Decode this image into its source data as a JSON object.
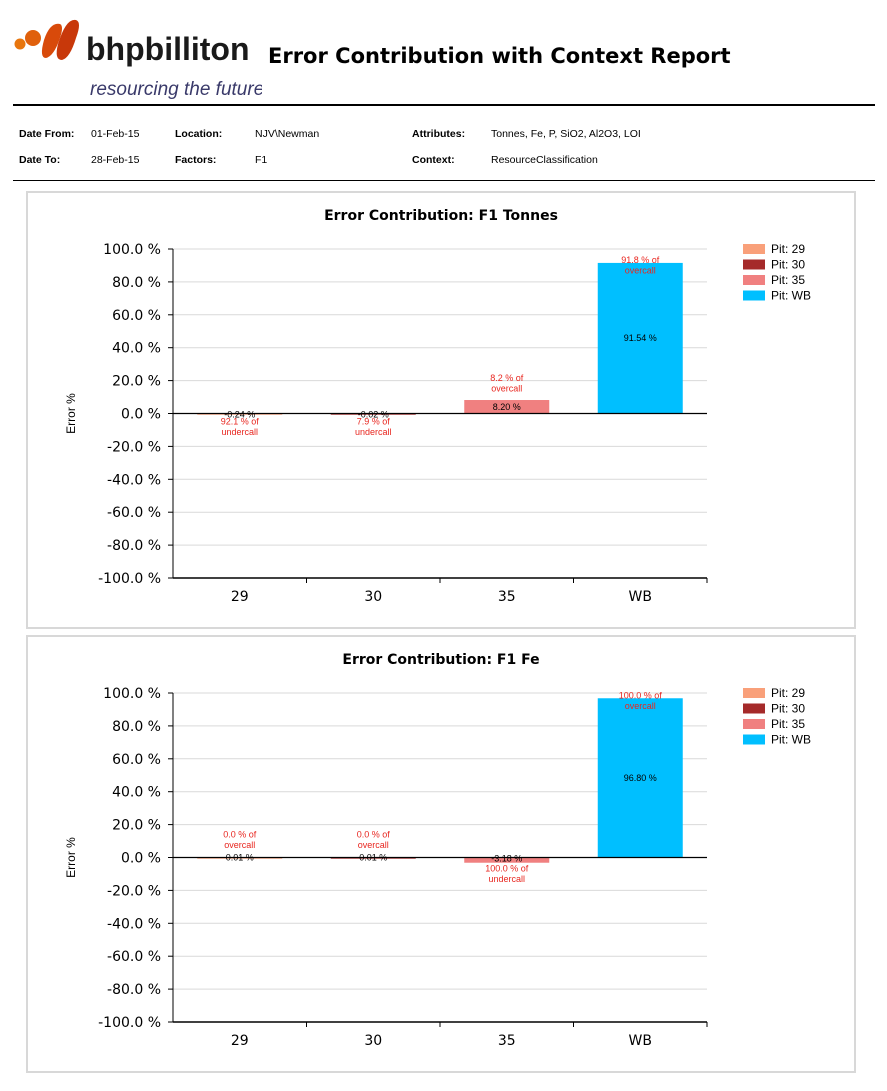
{
  "header": {
    "logo_name": "bhpbilliton",
    "logo_tagline": "resourcing the future",
    "report_title": "Error Contribution with Context Report"
  },
  "filters": {
    "date_from_label": "Date From:",
    "date_from": "01-Feb-15",
    "date_to_label": "Date To:",
    "date_to": "28-Feb-15",
    "location_label": "Location:",
    "location": "NJV\\Newman",
    "factors_label": "Factors:",
    "factors": "F1",
    "attributes_label": "Attributes:",
    "attributes": "Tonnes, Fe, P, SiO2, Al2O3, LOI",
    "context_label": "Context:",
    "context": "ResourceClassification"
  },
  "chart_data": [
    {
      "type": "bar",
      "title": "Error Contribution: F1 Tonnes",
      "ylabel": "Error %",
      "xlabel": "",
      "ylim": [
        -100,
        100
      ],
      "ytick_step": 20,
      "ytick_labels": [
        "100.0 %",
        "80.0 %",
        "60.0 %",
        "40.0 %",
        "20.0 %",
        "0.0 %",
        "-20.0 %",
        "-40.0 %",
        "-60.0 %",
        "-80.0 %",
        "-100.0 %"
      ],
      "categories": [
        "29",
        "30",
        "35",
        "WB"
      ],
      "values": [
        -0.24,
        -0.02,
        8.2,
        91.54
      ],
      "value_labels": [
        "-0.24 %",
        "-0.02 %",
        "8.20 %",
        "91.54 %"
      ],
      "call_labels": [
        [
          "92.1 % of",
          "undercall"
        ],
        [
          "7.9 % of",
          "undercall"
        ],
        [
          "8.2 % of",
          "overcall"
        ],
        [
          "91.8 % of",
          "overcall"
        ]
      ],
      "colors": [
        "#f9a07a",
        "#a52a2a",
        "#f08080",
        "#00bfff"
      ],
      "legend": [
        "Pit: 29",
        "Pit: 30",
        "Pit: 35",
        "Pit: WB"
      ],
      "legend_position": "top-right",
      "grid": true
    },
    {
      "type": "bar",
      "title": "Error Contribution: F1 Fe",
      "ylabel": "Error %",
      "xlabel": "",
      "ylim": [
        -100,
        100
      ],
      "ytick_step": 20,
      "ytick_labels": [
        "100.0 %",
        "80.0 %",
        "60.0 %",
        "40.0 %",
        "20.0 %",
        "0.0 %",
        "-20.0 %",
        "-40.0 %",
        "-60.0 %",
        "-80.0 %",
        "-100.0 %"
      ],
      "categories": [
        "29",
        "30",
        "35",
        "WB"
      ],
      "values": [
        0.01,
        0.01,
        -3.18,
        96.8
      ],
      "value_labels": [
        "0.01 %",
        "0.01 %",
        "-3.18 %",
        "96.80 %"
      ],
      "call_labels": [
        [
          "0.0 % of",
          "overcall"
        ],
        [
          "0.0 % of",
          "overcall"
        ],
        [
          "100.0 % of",
          "undercall"
        ],
        [
          "100.0 % of",
          "overcall"
        ]
      ],
      "colors": [
        "#f9a07a",
        "#a52a2a",
        "#f08080",
        "#00bfff"
      ],
      "legend": [
        "Pit: 29",
        "Pit: 30",
        "Pit: 35",
        "Pit: WB"
      ],
      "legend_position": "top-right",
      "grid": true
    }
  ]
}
